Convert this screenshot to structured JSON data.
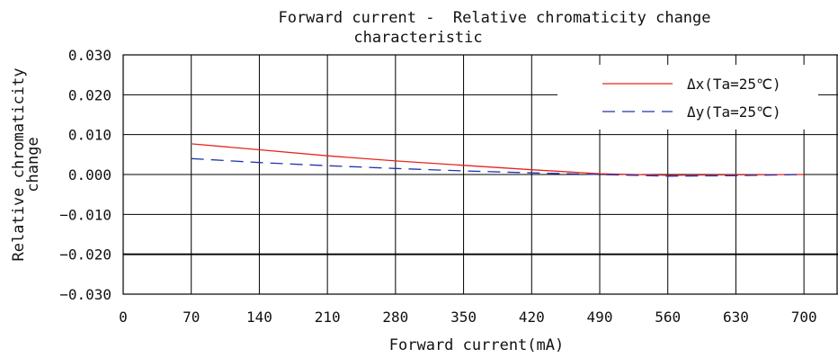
{
  "chart_data": {
    "type": "line",
    "title": "Forward current -  Relative chromaticity change characteristic",
    "title_lines": [
      "Forward current -  Relative chromaticity change",
      "characteristic"
    ],
    "xlabel": "Forward current(mA)",
    "ylabel": "Relative chromaticity change",
    "ylabel_lines": [
      "Relative chromaticity",
      "change"
    ],
    "xlim": [
      0,
      735
    ],
    "ylim": [
      -0.03,
      0.03
    ],
    "x_ticks": [
      0,
      70,
      140,
      210,
      280,
      350,
      420,
      490,
      560,
      630,
      700
    ],
    "x_tick_labels": [
      "0",
      "70",
      "140",
      "210",
      "280",
      "350",
      "420",
      "490",
      "560",
      "630",
      "700"
    ],
    "y_ticks": [
      0.03,
      0.02,
      0.01,
      0.0,
      -0.01,
      -0.02,
      -0.03
    ],
    "y_tick_labels": [
      "0.030",
      "0.020",
      "0.010",
      "0.000",
      "−0.010",
      "−0.020",
      "−0.030"
    ],
    "grid": true,
    "legend_position": "top-right",
    "series": [
      {
        "name": "Δx(Ta=25℃)",
        "color": "#e8251f",
        "style": "solid",
        "x": [
          70,
          140,
          210,
          280,
          350,
          420,
          490,
          560,
          630,
          700
        ],
        "y": [
          0.0077,
          0.0062,
          0.0047,
          0.0034,
          0.0023,
          0.0012,
          0.0002,
          -0.0002,
          -0.0001,
          0.0
        ]
      },
      {
        "name": "Δy(Ta=25℃)",
        "color": "#2233aa",
        "style": "dashed",
        "x": [
          70,
          140,
          210,
          280,
          350,
          420,
          490,
          560,
          630,
          700
        ],
        "y": [
          0.004,
          0.003,
          0.0022,
          0.0015,
          0.0009,
          0.0004,
          0.0,
          -0.0004,
          -0.0003,
          0.0
        ]
      }
    ]
  }
}
